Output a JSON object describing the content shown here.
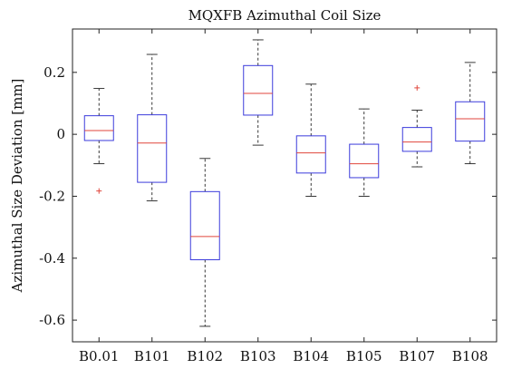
{
  "chart_data": {
    "type": "boxplot",
    "title": "MQXFB Azimuthal Coil Size",
    "ylabel": "Azimuthal Size Deviation [mm]",
    "xlabel": "",
    "ylim": [
      -0.67,
      0.34
    ],
    "yticks": [
      0.2,
      0,
      -0.2,
      -0.4,
      -0.6
    ],
    "ytick_labels": [
      "0.2",
      "0",
      "-0.2",
      "-0.4",
      "-0.6"
    ],
    "grid": false,
    "categories": [
      "B0.01",
      "B101",
      "B102",
      "B103",
      "B104",
      "B105",
      "B107",
      "B108"
    ],
    "boxes": [
      {
        "label": "B0.01",
        "whisker_low": -0.095,
        "q1": -0.02,
        "median": 0.012,
        "q3": 0.06,
        "whisker_high": 0.148,
        "outliers": [
          -0.183
        ]
      },
      {
        "label": "B101",
        "whisker_low": -0.215,
        "q1": -0.155,
        "median": -0.028,
        "q3": 0.063,
        "whisker_high": 0.258,
        "outliers": []
      },
      {
        "label": "B102",
        "whisker_low": -0.62,
        "q1": -0.405,
        "median": -0.33,
        "q3": -0.185,
        "whisker_high": -0.078,
        "outliers": []
      },
      {
        "label": "B103",
        "whisker_low": -0.035,
        "q1": 0.062,
        "median": 0.132,
        "q3": 0.222,
        "whisker_high": 0.305,
        "outliers": []
      },
      {
        "label": "B104",
        "whisker_low": -0.2,
        "q1": -0.125,
        "median": -0.06,
        "q3": -0.005,
        "whisker_high": 0.162,
        "outliers": []
      },
      {
        "label": "B105",
        "whisker_low": -0.2,
        "q1": -0.14,
        "median": -0.095,
        "q3": -0.032,
        "whisker_high": 0.082,
        "outliers": []
      },
      {
        "label": "B107",
        "whisker_low": -0.105,
        "q1": -0.055,
        "median": -0.025,
        "q3": 0.022,
        "whisker_high": 0.078,
        "outliers": [
          0.15
        ]
      },
      {
        "label": "B108",
        "whisker_low": -0.095,
        "q1": -0.022,
        "median": 0.05,
        "q3": 0.105,
        "whisker_high": 0.232,
        "outliers": []
      }
    ],
    "colors": {
      "box": "#3b3bdc",
      "median": "#e0463c",
      "outlier": "#e0463c",
      "whisker": "#222222"
    }
  }
}
